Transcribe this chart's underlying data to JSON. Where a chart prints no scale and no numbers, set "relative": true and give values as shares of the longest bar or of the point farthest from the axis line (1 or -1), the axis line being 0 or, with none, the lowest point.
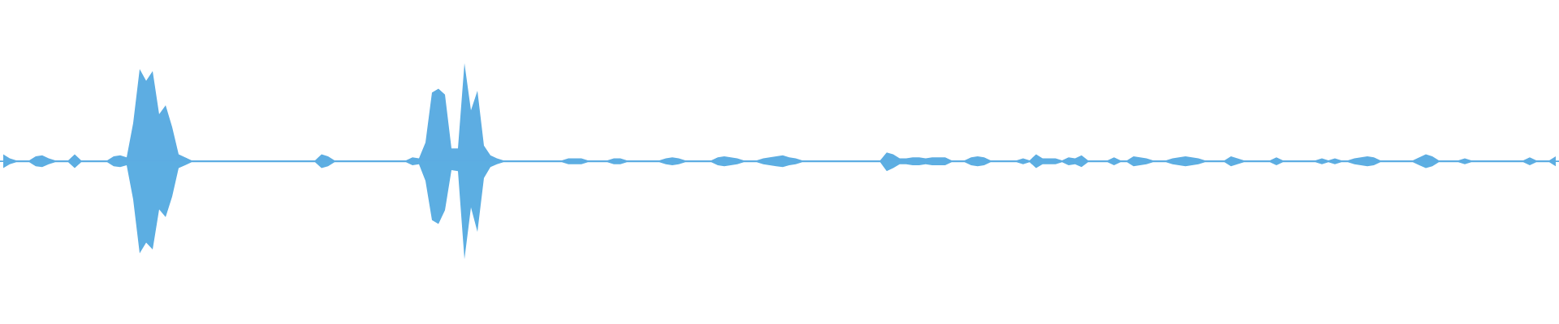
{
  "chart_data": {
    "type": "area",
    "relative": true,
    "ref_lines": [
      {
        "axis": "y",
        "value": 0,
        "color": "#5dade2"
      }
    ],
    "categories": [
      null,
      null,
      null,
      null,
      null,
      null,
      null,
      null,
      null,
      null,
      null,
      null,
      null,
      null,
      null,
      null,
      null,
      null,
      null,
      null,
      null,
      null,
      null,
      null,
      null,
      null,
      null,
      null,
      null,
      null,
      null,
      null,
      null,
      null,
      null,
      null,
      null,
      null,
      null,
      null,
      null,
      null,
      null,
      null,
      null,
      null,
      null,
      null,
      null,
      null,
      null,
      null,
      null,
      null,
      null,
      null,
      null,
      null,
      null,
      null,
      null,
      null,
      null,
      null,
      null,
      null,
      null,
      null,
      null,
      null,
      null,
      null,
      null,
      null,
      null,
      null,
      null,
      null,
      null,
      null,
      null,
      null,
      null,
      null,
      null,
      null,
      null,
      null,
      null,
      null,
      null,
      null,
      null,
      null,
      null,
      null,
      null,
      null,
      null,
      null,
      null,
      null,
      null,
      null,
      null,
      null,
      null,
      null,
      null,
      null,
      null,
      null,
      null,
      null,
      null,
      null,
      null,
      null,
      null,
      null,
      null,
      null,
      null,
      null,
      null,
      null,
      null,
      null,
      null,
      null,
      null,
      null,
      null,
      null,
      null,
      null,
      null,
      null,
      null,
      null,
      null,
      null,
      null,
      null,
      null,
      null,
      null,
      null,
      null,
      null,
      null,
      null,
      null,
      null,
      null,
      null,
      null,
      null,
      null,
      null,
      null,
      null,
      null,
      null,
      null,
      null,
      null,
      null,
      null,
      null,
      null,
      null,
      null,
      null,
      null,
      null,
      null,
      null,
      null,
      null,
      null,
      null,
      null,
      null,
      null,
      null,
      null,
      null,
      null,
      null,
      null,
      null,
      null,
      null,
      null,
      null,
      null,
      null,
      null,
      null,
      null,
      null,
      null,
      null,
      null,
      null,
      null,
      null,
      null,
      null,
      null,
      null,
      null,
      null,
      null,
      null,
      null,
      null,
      null,
      null,
      null,
      null,
      null,
      null,
      null,
      null,
      null,
      null,
      null,
      null,
      null,
      null,
      null,
      null,
      null,
      null,
      null,
      null,
      null,
      null
    ],
    "series": [
      {
        "color": "#5dade2",
        "values": [
          0.07,
          0.03,
          0.01,
          0.01,
          0.01,
          0.05,
          0.06,
          0.03,
          0.01,
          0.01,
          0.01,
          0.07,
          0.01,
          0.01,
          0.01,
          0.01,
          0.01,
          0.05,
          0.06,
          0.04,
          0.39,
          0.94,
          0.82,
          0.92,
          0.48,
          0.57,
          0.35,
          0.07,
          0.04,
          0.01,
          0.01,
          0.01,
          0.01,
          0.01,
          0.01,
          0.01,
          0.01,
          0.01,
          0.01,
          0.01,
          0.01,
          0.01,
          0.01,
          0.01,
          0.01,
          0.01,
          0.01,
          0.01,
          0.01,
          0.07,
          0.05,
          0.01,
          0.01,
          0.01,
          0.01,
          0.01,
          0.01,
          0.01,
          0.01,
          0.01,
          0.01,
          0.01,
          0.01,
          0.04,
          0.03,
          0.19,
          0.7,
          0.74,
          0.68,
          0.13,
          0.13,
          1.0,
          0.52,
          0.72,
          0.16,
          0.06,
          0.03,
          0.01,
          0.01,
          0.01,
          0.01,
          0.01,
          0.01,
          0.01,
          0.01,
          0.01,
          0.01,
          0.03,
          0.03,
          0.03,
          0.01,
          0.01,
          0.01,
          0.01,
          0.03,
          0.03,
          0.01,
          0.01,
          0.01,
          0.01,
          0.01,
          0.01,
          0.03,
          0.04,
          0.03,
          0.01,
          0.01,
          0.01,
          0.01,
          0.01,
          0.04,
          0.05,
          0.04,
          0.03,
          0.01,
          0.01,
          0.01,
          0.03,
          0.04,
          0.05,
          0.06,
          0.04,
          0.03,
          0.01,
          0.01,
          0.01,
          0.01,
          0.01,
          0.01,
          0.01,
          0.01,
          0.01,
          0.01,
          0.01,
          0.01,
          0.01,
          0.09,
          0.07,
          0.03,
          0.03,
          0.04,
          0.04,
          0.03,
          0.04,
          0.04,
          0.04,
          0.01,
          0.01,
          0.01,
          0.04,
          0.05,
          0.04,
          0.01,
          0.01,
          0.01,
          0.01,
          0.01,
          0.03,
          0.01,
          0.07,
          0.03,
          0.03,
          0.03,
          0.01,
          0.04,
          0.03,
          0.06,
          0.01,
          0.01,
          0.01,
          0.01,
          0.04,
          0.01,
          0.01,
          0.05,
          0.04,
          0.03,
          0.01,
          0.01,
          0.01,
          0.03,
          0.04,
          0.05,
          0.04,
          0.03,
          0.01,
          0.01,
          0.01,
          0.01,
          0.05,
          0.03,
          0.01,
          0.01,
          0.01,
          0.01,
          0.01,
          0.04,
          0.01,
          0.01,
          0.01,
          0.01,
          0.01,
          0.01,
          0.03,
          0.01,
          0.03,
          0.01,
          0.01,
          0.03,
          0.04,
          0.05,
          0.04,
          0.01,
          0.01,
          0.01,
          0.01,
          0.01,
          0.01,
          0.04,
          0.07,
          0.05,
          0.01,
          0.01,
          0.01,
          0.01,
          0.03,
          0.01,
          0.01,
          0.01,
          0.01,
          0.01,
          0.01,
          0.01,
          0.01,
          0.01,
          0.04,
          0.01,
          0.01,
          0.01,
          0.05
        ]
      },
      {
        "color": "#5caee2",
        "values": [
          -0.07,
          -0.03,
          -0.01,
          -0.01,
          -0.01,
          -0.05,
          -0.06,
          -0.03,
          -0.01,
          -0.01,
          -0.01,
          -0.07,
          -0.01,
          -0.01,
          -0.01,
          -0.01,
          -0.01,
          -0.05,
          -0.06,
          -0.04,
          -0.39,
          -0.94,
          -0.83,
          -0.9,
          -0.49,
          -0.57,
          -0.36,
          -0.07,
          -0.04,
          -0.01,
          -0.01,
          -0.01,
          -0.01,
          -0.01,
          -0.01,
          -0.01,
          -0.01,
          -0.01,
          -0.01,
          -0.01,
          -0.01,
          -0.01,
          -0.01,
          -0.01,
          -0.01,
          -0.01,
          -0.01,
          -0.01,
          -0.01,
          -0.07,
          -0.05,
          -0.01,
          -0.01,
          -0.01,
          -0.01,
          -0.01,
          -0.01,
          -0.01,
          -0.01,
          -0.01,
          -0.01,
          -0.01,
          -0.01,
          -0.04,
          -0.03,
          -0.2,
          -0.6,
          -0.64,
          -0.5,
          -0.09,
          -0.1,
          -1.0,
          -0.47,
          -0.72,
          -0.17,
          -0.06,
          -0.03,
          -0.01,
          -0.01,
          -0.01,
          -0.01,
          -0.01,
          -0.01,
          -0.01,
          -0.01,
          -0.01,
          -0.01,
          -0.03,
          -0.03,
          -0.03,
          -0.01,
          -0.01,
          -0.01,
          -0.01,
          -0.03,
          -0.03,
          -0.01,
          -0.01,
          -0.01,
          -0.01,
          -0.01,
          -0.01,
          -0.03,
          -0.04,
          -0.03,
          -0.01,
          -0.01,
          -0.01,
          -0.01,
          -0.01,
          -0.04,
          -0.05,
          -0.04,
          -0.03,
          -0.01,
          -0.01,
          -0.01,
          -0.03,
          -0.04,
          -0.05,
          -0.06,
          -0.04,
          -0.03,
          -0.01,
          -0.01,
          -0.01,
          -0.01,
          -0.01,
          -0.01,
          -0.01,
          -0.01,
          -0.01,
          -0.01,
          -0.01,
          -0.01,
          -0.01,
          -0.1,
          -0.07,
          -0.03,
          -0.03,
          -0.04,
          -0.04,
          -0.03,
          -0.04,
          -0.04,
          -0.04,
          -0.01,
          -0.01,
          -0.01,
          -0.04,
          -0.05,
          -0.04,
          -0.01,
          -0.01,
          -0.01,
          -0.01,
          -0.01,
          -0.03,
          -0.01,
          -0.07,
          -0.03,
          -0.03,
          -0.03,
          -0.01,
          -0.04,
          -0.03,
          -0.06,
          -0.01,
          -0.01,
          -0.01,
          -0.01,
          -0.04,
          -0.01,
          -0.01,
          -0.05,
          -0.04,
          -0.03,
          -0.01,
          -0.01,
          -0.01,
          -0.03,
          -0.04,
          -0.05,
          -0.04,
          -0.03,
          -0.01,
          -0.01,
          -0.01,
          -0.01,
          -0.05,
          -0.03,
          -0.01,
          -0.01,
          -0.01,
          -0.01,
          -0.01,
          -0.04,
          -0.01,
          -0.01,
          -0.01,
          -0.01,
          -0.01,
          -0.01,
          -0.03,
          -0.01,
          -0.03,
          -0.01,
          -0.01,
          -0.03,
          -0.04,
          -0.05,
          -0.04,
          -0.01,
          -0.01,
          -0.01,
          -0.01,
          -0.01,
          -0.01,
          -0.04,
          -0.07,
          -0.05,
          -0.01,
          -0.01,
          -0.01,
          -0.01,
          -0.03,
          -0.01,
          -0.01,
          -0.01,
          -0.01,
          -0.01,
          -0.01,
          -0.01,
          -0.01,
          -0.01,
          -0.04,
          -0.01,
          -0.01,
          -0.01,
          -0.05
        ]
      }
    ]
  }
}
